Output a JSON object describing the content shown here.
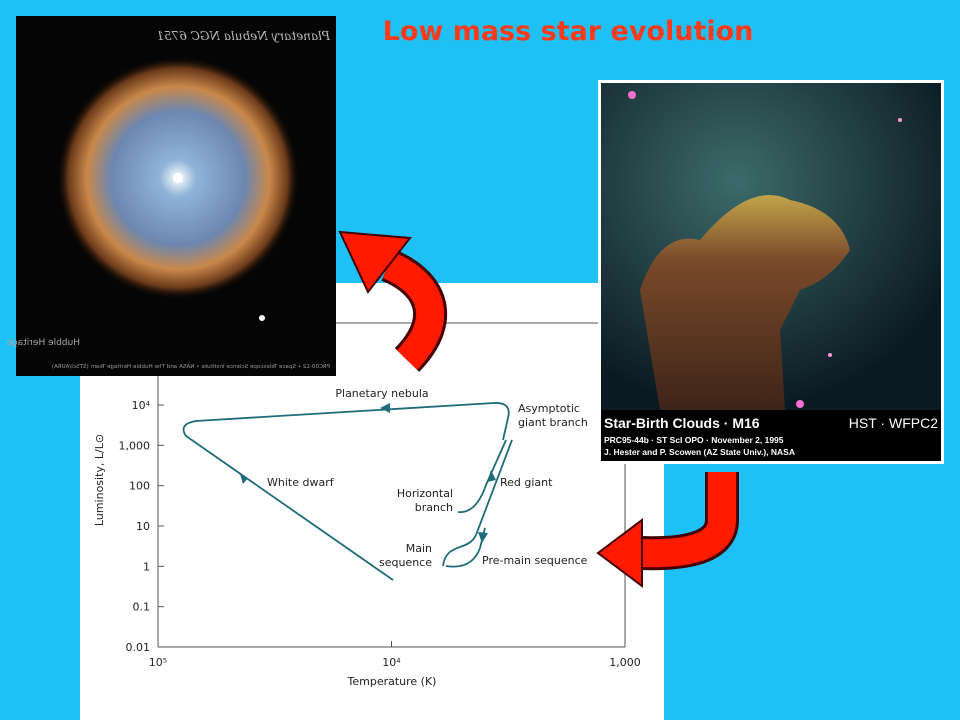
{
  "title": "Low mass star evolution",
  "nebula_image": {
    "caption": "Planetary Nebula NGC 6751",
    "logo": "Hubble Heritage",
    "credit": "PRC00-12 • Space Telescope Science Institute • NASA and The Hubble Heritage Team (STScI/AURA)"
  },
  "m16_image": {
    "title": "Star-Birth Clouds · M16",
    "instrument": "HST · WFPC2",
    "credit_1": "PRC95-44b · ST ScI OPO · November 2, 1995",
    "credit_2": "J. Hester and P. Scowen (AZ State Univ.), NASA"
  },
  "diagram": {
    "y_label": "Luminosity, L/L⊙",
    "x_label": "Temperature (K)",
    "yticks": [
      "10⁴",
      "1,000",
      "100",
      "10",
      "1",
      "0.1",
      "0.01"
    ],
    "xticks": [
      "10⁵",
      "10⁴",
      "1,000"
    ],
    "annotations": [
      "Planetary nebula",
      "Asymptotic",
      "giant branch",
      "White dwarf",
      "Red giant",
      "Horizontal",
      "branch",
      "Main",
      "sequence",
      "Pre-main sequence"
    ]
  }
}
